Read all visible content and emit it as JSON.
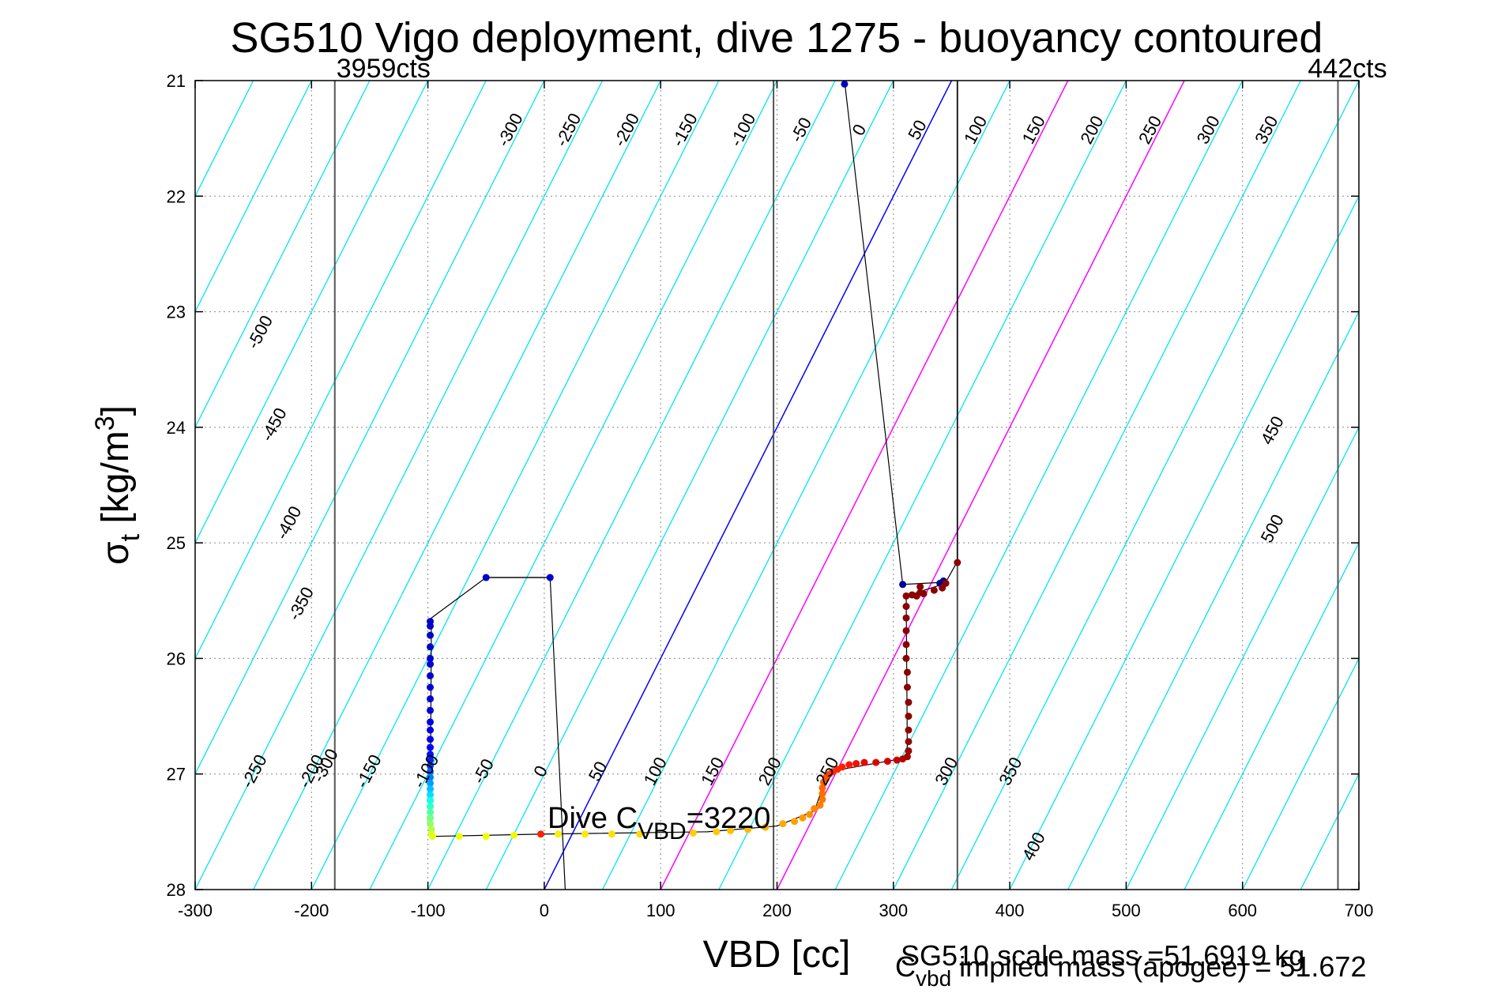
{
  "chart_data": {
    "type": "scatter",
    "title": "SG510 Vigo deployment, dive 1275 - buoyancy contoured",
    "xlabel": "VBD [cc]",
    "ylabel_main": "σ",
    "ylabel_sub": "t",
    "ylabel_unit": " [kg/m",
    "ylabel_sup": "3",
    "ylabel_close": "]",
    "xlim": [
      -300,
      700
    ],
    "ylim": [
      21,
      28
    ],
    "y_reversed": true,
    "grid": true,
    "xticks": [
      -300,
      -200,
      -100,
      0,
      100,
      200,
      300,
      400,
      500,
      600,
      700
    ],
    "yticks": [
      21,
      22,
      23,
      24,
      25,
      26,
      27,
      28
    ],
    "vertical_lines": [
      {
        "x": -180,
        "label": "3959cts"
      },
      {
        "x": 197,
        "label": ""
      },
      {
        "x": 355,
        "label": ""
      },
      {
        "x": 682,
        "label": "442cts"
      }
    ],
    "contour_labels_top": [
      "-300",
      "-250",
      "-200",
      "-150",
      "-100",
      "-50",
      "0",
      "50",
      "100",
      "150",
      "200",
      "250",
      "300",
      "350"
    ],
    "contour_labels_left": [
      "-500",
      "-450",
      "-400",
      "-350",
      "-300"
    ],
    "contour_labels_right": [
      "450",
      "500"
    ],
    "contour_labels_bottom": [
      "-250",
      "-200",
      "-150",
      "-100",
      "-50",
      "0",
      "50",
      "100",
      "150",
      "200",
      "250",
      "300",
      "350",
      "400"
    ],
    "colors": {
      "contour": "#00e5ee",
      "zero_line": "#0000ff",
      "highlight_lines": "#ff00ff",
      "track": "#000000",
      "vline": "#555555"
    },
    "dive_cvbd_prefix": "Dive C",
    "dive_cvbd_sub": "VBD",
    "dive_cvbd_value": "=3220",
    "scale_mass_text": "SG510 scale mass =51.6919 kg",
    "implied_prefix": "C",
    "implied_sub": "vbd",
    "implied_text": " implied mass (apogee) = 51.672",
    "track": [
      [
        258,
        21.0
      ],
      [
        308,
        25.36
      ],
      [
        345,
        25.34
      ],
      [
        355,
        25.16
      ]
    ],
    "track2": [
      [
        355,
        25.16
      ],
      [
        355,
        21.0
      ]
    ],
    "dive_path": [
      [
        -50,
        25.3
      ],
      [
        5,
        25.3
      ],
      [
        18,
        28.0
      ]
    ],
    "points": [
      {
        "x": 258,
        "y": 21.03,
        "c": "#0000c8"
      },
      {
        "x": 308,
        "y": 25.36,
        "c": "#0000a0"
      },
      {
        "x": 340,
        "y": 25.35,
        "c": "#00008c"
      },
      {
        "x": 343,
        "y": 25.33,
        "c": "#00008c"
      },
      {
        "x": 355,
        "y": 25.17,
        "c": "#8b0000"
      },
      {
        "x": -50,
        "y": 25.3,
        "c": "#0000c8"
      },
      {
        "x": 5,
        "y": 25.3,
        "c": "#0000c8"
      },
      {
        "x": -98,
        "y": 25.68,
        "c": "#0000c8"
      },
      {
        "x": -98,
        "y": 25.72,
        "c": "#0000c8"
      },
      {
        "x": -98,
        "y": 25.8,
        "c": "#0000c8"
      },
      {
        "x": -98,
        "y": 25.9,
        "c": "#0000c8"
      },
      {
        "x": -98,
        "y": 26.0,
        "c": "#0000d0"
      },
      {
        "x": -98,
        "y": 26.05,
        "c": "#0000d0"
      },
      {
        "x": -98,
        "y": 26.15,
        "c": "#0000d0"
      },
      {
        "x": -98,
        "y": 26.25,
        "c": "#0000d8"
      },
      {
        "x": -98,
        "y": 26.35,
        "c": "#0000d8"
      },
      {
        "x": -98,
        "y": 26.45,
        "c": "#0000d8"
      },
      {
        "x": -98,
        "y": 26.55,
        "c": "#0000e0"
      },
      {
        "x": -98,
        "y": 26.62,
        "c": "#0000e0"
      },
      {
        "x": -98,
        "y": 26.7,
        "c": "#0000e8"
      },
      {
        "x": -98,
        "y": 26.77,
        "c": "#0008f0"
      },
      {
        "x": -98,
        "y": 26.83,
        "c": "#0010f8"
      },
      {
        "x": -98,
        "y": 26.88,
        "c": "#0020ff"
      },
      {
        "x": -98,
        "y": 26.93,
        "c": "#0040ff"
      },
      {
        "x": -98,
        "y": 26.98,
        "c": "#0060ff"
      },
      {
        "x": -98,
        "y": 27.03,
        "c": "#0080ff"
      },
      {
        "x": -98,
        "y": 27.08,
        "c": "#00a0ff"
      },
      {
        "x": -98,
        "y": 27.13,
        "c": "#00c0ff"
      },
      {
        "x": -98,
        "y": 27.18,
        "c": "#00e0ff"
      },
      {
        "x": -98,
        "y": 27.23,
        "c": "#10ffe8"
      },
      {
        "x": -98,
        "y": 27.28,
        "c": "#30ffc8"
      },
      {
        "x": -98,
        "y": 27.33,
        "c": "#50ffa8"
      },
      {
        "x": -98,
        "y": 27.38,
        "c": "#70ff88"
      },
      {
        "x": -98,
        "y": 27.43,
        "c": "#90ff68"
      },
      {
        "x": -97,
        "y": 27.48,
        "c": "#b0ff48"
      },
      {
        "x": -97,
        "y": 27.52,
        "c": "#d0ff28"
      },
      {
        "x": -96,
        "y": 27.54,
        "c": "#e8ff10"
      },
      {
        "x": -73,
        "y": 27.54,
        "c": "#eeff00"
      },
      {
        "x": -50,
        "y": 27.54,
        "c": "#f0ff00"
      },
      {
        "x": -26,
        "y": 27.53,
        "c": "#f4f800"
      },
      {
        "x": -3,
        "y": 27.52,
        "c": "#ff2000"
      },
      {
        "x": 12,
        "y": 27.52,
        "c": "#f8f000"
      },
      {
        "x": 35,
        "y": 27.52,
        "c": "#ffe800"
      },
      {
        "x": 58,
        "y": 27.52,
        "c": "#ffe000"
      },
      {
        "x": 82,
        "y": 27.52,
        "c": "#ffd800"
      },
      {
        "x": 128,
        "y": 27.51,
        "c": "#ffd000"
      },
      {
        "x": 148,
        "y": 27.5,
        "c": "#ffc800"
      },
      {
        "x": 160,
        "y": 27.49,
        "c": "#ffc000"
      },
      {
        "x": 175,
        "y": 27.48,
        "c": "#ffb800"
      },
      {
        "x": 190,
        "y": 27.46,
        "c": "#ffb000"
      },
      {
        "x": 205,
        "y": 27.43,
        "c": "#ffa800"
      },
      {
        "x": 215,
        "y": 27.41,
        "c": "#ffa000"
      },
      {
        "x": 222,
        "y": 27.38,
        "c": "#ff9800"
      },
      {
        "x": 228,
        "y": 27.35,
        "c": "#ff9000"
      },
      {
        "x": 232,
        "y": 27.3,
        "c": "#ff8800"
      },
      {
        "x": 237,
        "y": 27.27,
        "c": "#ff8000"
      },
      {
        "x": 239,
        "y": 27.22,
        "c": "#ff7800"
      },
      {
        "x": 239,
        "y": 27.17,
        "c": "#ff7000"
      },
      {
        "x": 239,
        "y": 27.12,
        "c": "#ff6800"
      },
      {
        "x": 240,
        "y": 27.07,
        "c": "#ff6000"
      },
      {
        "x": 242,
        "y": 27.03,
        "c": "#ff5000"
      },
      {
        "x": 245,
        "y": 27.0,
        "c": "#ff4000"
      },
      {
        "x": 248,
        "y": 26.98,
        "c": "#ff3000"
      },
      {
        "x": 252,
        "y": 26.96,
        "c": "#ff2800"
      },
      {
        "x": 256,
        "y": 26.94,
        "c": "#ff2000"
      },
      {
        "x": 262,
        "y": 26.92,
        "c": "#f81800"
      },
      {
        "x": 268,
        "y": 26.91,
        "c": "#f01000"
      },
      {
        "x": 275,
        "y": 26.9,
        "c": "#e80800"
      },
      {
        "x": 285,
        "y": 26.9,
        "c": "#e00000"
      },
      {
        "x": 295,
        "y": 26.89,
        "c": "#d80000"
      },
      {
        "x": 303,
        "y": 26.88,
        "c": "#c80000"
      },
      {
        "x": 308,
        "y": 26.87,
        "c": "#b80000"
      },
      {
        "x": 312,
        "y": 26.85,
        "c": "#a80000"
      },
      {
        "x": 313,
        "y": 26.8,
        "c": "#a00000"
      },
      {
        "x": 313,
        "y": 26.72,
        "c": "#980000"
      },
      {
        "x": 313,
        "y": 26.62,
        "c": "#900000"
      },
      {
        "x": 313,
        "y": 26.5,
        "c": "#8c0000"
      },
      {
        "x": 313,
        "y": 26.38,
        "c": "#8b0000"
      },
      {
        "x": 312,
        "y": 26.25,
        "c": "#8b0000"
      },
      {
        "x": 312,
        "y": 26.12,
        "c": "#8b0000"
      },
      {
        "x": 311,
        "y": 26.0,
        "c": "#8b0000"
      },
      {
        "x": 311,
        "y": 25.88,
        "c": "#8b0000"
      },
      {
        "x": 311,
        "y": 25.76,
        "c": "#8b0000"
      },
      {
        "x": 311,
        "y": 25.65,
        "c": "#8b0000"
      },
      {
        "x": 311,
        "y": 25.55,
        "c": "#8b0000"
      },
      {
        "x": 311,
        "y": 25.46,
        "c": "#8b0000"
      },
      {
        "x": 316,
        "y": 25.45,
        "c": "#8b0000"
      },
      {
        "x": 320,
        "y": 25.46,
        "c": "#8b0000"
      },
      {
        "x": 323,
        "y": 25.43,
        "c": "#8b0000"
      },
      {
        "x": 326,
        "y": 25.44,
        "c": "#8b0000"
      },
      {
        "x": 323,
        "y": 25.38,
        "c": "#8b0000"
      },
      {
        "x": 335,
        "y": 25.41,
        "c": "#8b0000"
      },
      {
        "x": 342,
        "y": 25.39,
        "c": "#8b0000"
      },
      {
        "x": 345,
        "y": 25.35,
        "c": "#8b0000"
      }
    ]
  }
}
